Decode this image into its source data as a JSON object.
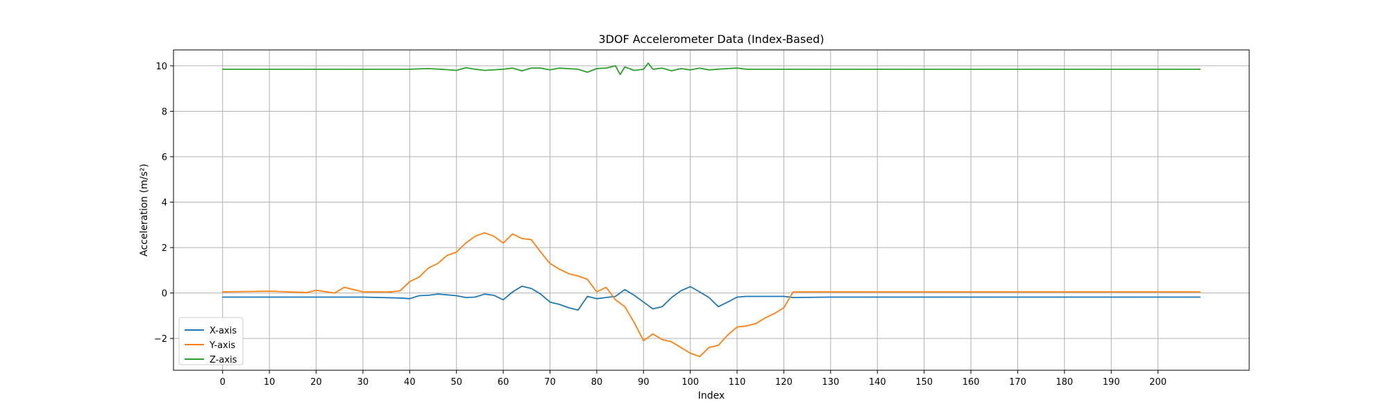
{
  "chart_data": {
    "type": "line",
    "title": "3DOF Accelerometer Data (Index-Based)",
    "xlabel": "Index",
    "ylabel": "Acceleration (m/s²)",
    "xlim": [
      -10.5,
      219.5
    ],
    "ylim": [
      -3.4,
      10.7
    ],
    "xticks": [
      0,
      10,
      20,
      30,
      40,
      50,
      60,
      70,
      80,
      90,
      100,
      110,
      120,
      130,
      140,
      150,
      160,
      170,
      180,
      190,
      200
    ],
    "yticks": [
      -2,
      0,
      2,
      4,
      6,
      8,
      10
    ],
    "grid": true,
    "legend_position": "lower-left",
    "series": [
      {
        "name": "X-axis",
        "color": "#1f77b4",
        "points": [
          [
            0,
            -0.18
          ],
          [
            10,
            -0.18
          ],
          [
            20,
            -0.18
          ],
          [
            30,
            -0.18
          ],
          [
            38,
            -0.22
          ],
          [
            40,
            -0.25
          ],
          [
            42,
            -0.12
          ],
          [
            44,
            -0.1
          ],
          [
            46,
            -0.05
          ],
          [
            48,
            -0.08
          ],
          [
            50,
            -0.12
          ],
          [
            52,
            -0.2
          ],
          [
            54,
            -0.18
          ],
          [
            56,
            -0.05
          ],
          [
            58,
            -0.1
          ],
          [
            60,
            -0.3
          ],
          [
            62,
            0.05
          ],
          [
            64,
            0.3
          ],
          [
            66,
            0.2
          ],
          [
            68,
            -0.05
          ],
          [
            70,
            -0.4
          ],
          [
            72,
            -0.5
          ],
          [
            74,
            -0.65
          ],
          [
            76,
            -0.75
          ],
          [
            78,
            -0.15
          ],
          [
            80,
            -0.25
          ],
          [
            82,
            -0.2
          ],
          [
            84,
            -0.15
          ],
          [
            86,
            0.15
          ],
          [
            88,
            -0.1
          ],
          [
            90,
            -0.4
          ],
          [
            92,
            -0.7
          ],
          [
            94,
            -0.6
          ],
          [
            96,
            -0.2
          ],
          [
            98,
            0.1
          ],
          [
            100,
            0.28
          ],
          [
            102,
            0.05
          ],
          [
            104,
            -0.2
          ],
          [
            106,
            -0.6
          ],
          [
            108,
            -0.4
          ],
          [
            110,
            -0.18
          ],
          [
            112,
            -0.15
          ],
          [
            115,
            -0.15
          ],
          [
            120,
            -0.15
          ],
          [
            122,
            -0.2
          ],
          [
            130,
            -0.18
          ],
          [
            140,
            -0.18
          ],
          [
            150,
            -0.18
          ],
          [
            160,
            -0.18
          ],
          [
            170,
            -0.18
          ],
          [
            180,
            -0.18
          ],
          [
            190,
            -0.18
          ],
          [
            200,
            -0.18
          ],
          [
            209,
            -0.18
          ]
        ]
      },
      {
        "name": "Y-axis",
        "color": "#ff7f0e",
        "points": [
          [
            0,
            0.05
          ],
          [
            10,
            0.08
          ],
          [
            18,
            0.02
          ],
          [
            20,
            0.12
          ],
          [
            24,
            0.0
          ],
          [
            26,
            0.25
          ],
          [
            30,
            0.05
          ],
          [
            36,
            0.05
          ],
          [
            38,
            0.1
          ],
          [
            40,
            0.5
          ],
          [
            42,
            0.7
          ],
          [
            44,
            1.1
          ],
          [
            46,
            1.3
          ],
          [
            48,
            1.65
          ],
          [
            50,
            1.8
          ],
          [
            52,
            2.2
          ],
          [
            54,
            2.5
          ],
          [
            56,
            2.65
          ],
          [
            58,
            2.5
          ],
          [
            60,
            2.2
          ],
          [
            62,
            2.6
          ],
          [
            64,
            2.4
          ],
          [
            66,
            2.35
          ],
          [
            68,
            1.8
          ],
          [
            70,
            1.3
          ],
          [
            72,
            1.05
          ],
          [
            74,
            0.85
          ],
          [
            76,
            0.75
          ],
          [
            78,
            0.6
          ],
          [
            80,
            0.05
          ],
          [
            82,
            0.25
          ],
          [
            84,
            -0.3
          ],
          [
            86,
            -0.6
          ],
          [
            88,
            -1.3
          ],
          [
            90,
            -2.1
          ],
          [
            92,
            -1.8
          ],
          [
            94,
            -2.05
          ],
          [
            96,
            -2.15
          ],
          [
            98,
            -2.4
          ],
          [
            100,
            -2.65
          ],
          [
            102,
            -2.8
          ],
          [
            104,
            -2.4
          ],
          [
            106,
            -2.3
          ],
          [
            108,
            -1.85
          ],
          [
            110,
            -1.5
          ],
          [
            112,
            -1.45
          ],
          [
            114,
            -1.35
          ],
          [
            116,
            -1.1
          ],
          [
            118,
            -0.9
          ],
          [
            120,
            -0.65
          ],
          [
            122,
            0.05
          ],
          [
            126,
            0.05
          ],
          [
            130,
            0.05
          ],
          [
            140,
            0.05
          ],
          [
            150,
            0.05
          ],
          [
            160,
            0.05
          ],
          [
            170,
            0.05
          ],
          [
            180,
            0.05
          ],
          [
            190,
            0.05
          ],
          [
            200,
            0.05
          ],
          [
            209,
            0.05
          ]
        ]
      },
      {
        "name": "Z-axis",
        "color": "#2ca02c",
        "points": [
          [
            0,
            9.85
          ],
          [
            10,
            9.85
          ],
          [
            20,
            9.85
          ],
          [
            30,
            9.85
          ],
          [
            40,
            9.85
          ],
          [
            44,
            9.88
          ],
          [
            48,
            9.83
          ],
          [
            50,
            9.8
          ],
          [
            52,
            9.92
          ],
          [
            54,
            9.85
          ],
          [
            56,
            9.8
          ],
          [
            60,
            9.85
          ],
          [
            62,
            9.9
          ],
          [
            64,
            9.78
          ],
          [
            66,
            9.9
          ],
          [
            68,
            9.9
          ],
          [
            70,
            9.82
          ],
          [
            72,
            9.9
          ],
          [
            76,
            9.85
          ],
          [
            78,
            9.72
          ],
          [
            80,
            9.88
          ],
          [
            82,
            9.9
          ],
          [
            84,
            10.0
          ],
          [
            85,
            9.62
          ],
          [
            86,
            9.95
          ],
          [
            88,
            9.8
          ],
          [
            90,
            9.85
          ],
          [
            91,
            10.12
          ],
          [
            92,
            9.85
          ],
          [
            94,
            9.9
          ],
          [
            96,
            9.78
          ],
          [
            98,
            9.88
          ],
          [
            100,
            9.82
          ],
          [
            102,
            9.9
          ],
          [
            104,
            9.82
          ],
          [
            108,
            9.88
          ],
          [
            110,
            9.9
          ],
          [
            112,
            9.85
          ],
          [
            116,
            9.85
          ],
          [
            120,
            9.85
          ],
          [
            130,
            9.85
          ],
          [
            140,
            9.85
          ],
          [
            150,
            9.85
          ],
          [
            160,
            9.85
          ],
          [
            170,
            9.85
          ],
          [
            180,
            9.85
          ],
          [
            190,
            9.85
          ],
          [
            200,
            9.85
          ],
          [
            209,
            9.85
          ]
        ]
      }
    ]
  }
}
